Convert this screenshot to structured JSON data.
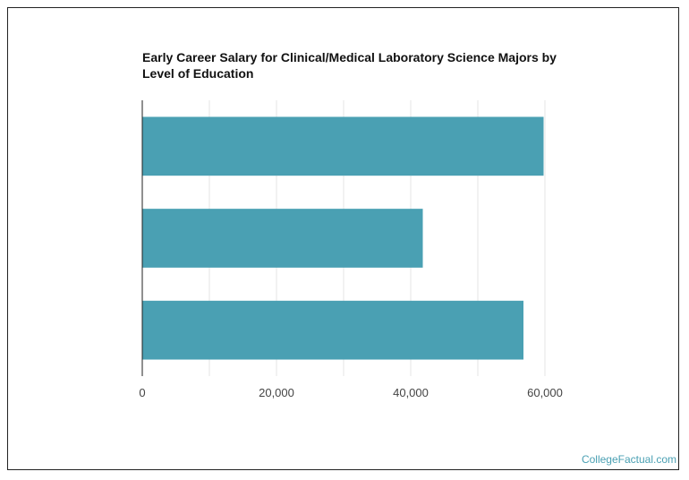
{
  "title_lines": [
    "Early Career Salary for Clinical/Medical Laboratory Science Majors by",
    "Level of Education"
  ],
  "credit": "CollegeFactual.com",
  "colors": {
    "bar": "#4aa0b3",
    "grid": "#e6e6e6",
    "axis": "#222222"
  },
  "chart_data": {
    "type": "bar",
    "orientation": "horizontal",
    "categories": [
      "",
      "",
      ""
    ],
    "values": [
      59800,
      41800,
      56800
    ],
    "xlim": [
      0,
      60000
    ],
    "xticks": [
      0,
      20000,
      40000,
      60000
    ],
    "xtick_labels": [
      "0",
      "20,000",
      "40,000",
      "60,000"
    ],
    "minor_gridlines": [
      10000,
      30000,
      50000
    ],
    "grid": true,
    "title": "Early Career Salary for Clinical/Medical Laboratory Science Majors by Level of Education",
    "xlabel": "",
    "ylabel": ""
  }
}
